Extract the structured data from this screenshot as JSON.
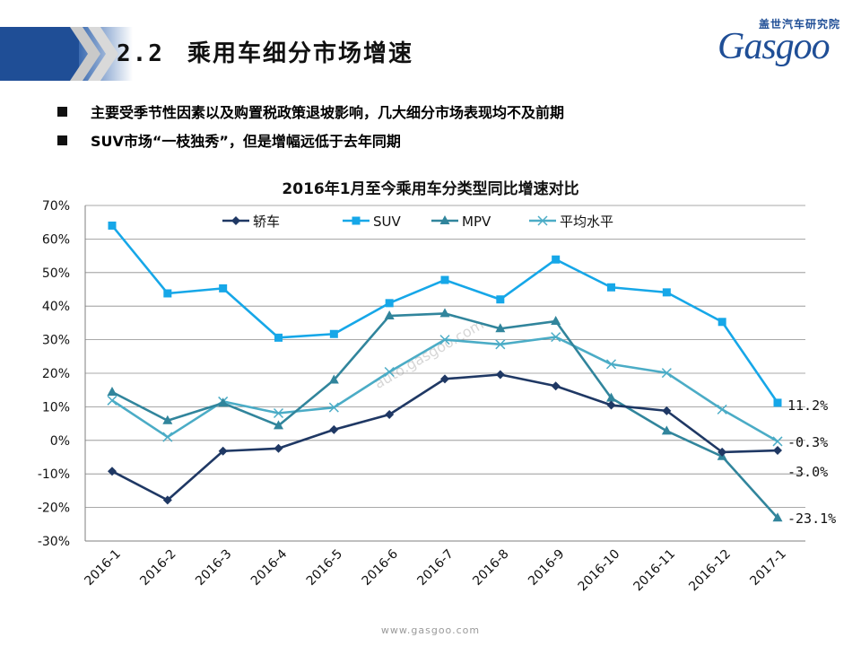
{
  "header": {
    "section_number": "2.2",
    "title": "乘用车细分市场增速",
    "logo_cn": "盖世汽车研究院",
    "logo_word": "Gasgoo"
  },
  "bullets": [
    "主要受季节性因素以及购置税政策退坡影响，几大细分市场表现均不及前期",
    "SUV市场“一枝独秀”，但是增幅远低于去年同期"
  ],
  "colors": {
    "title_band": "#1f4e96",
    "sedan": "#1f3864",
    "suv": "#16a7e8",
    "mpv": "#31859c",
    "average": "#4bacc6"
  },
  "chart_data": {
    "type": "line",
    "title": "2016年1月至今乘用车分类型同比增速对比",
    "categories": [
      "2016-1",
      "2016-2",
      "2016-3",
      "2016-4",
      "2016-5",
      "2016-6",
      "2016-7",
      "2016-8",
      "2016-9",
      "2016-10",
      "2016-11",
      "2016-12",
      "2017-1"
    ],
    "ylim": [
      -30,
      70
    ],
    "yticks": [
      "70%",
      "60%",
      "50%",
      "40%",
      "30%",
      "20%",
      "10%",
      "0%",
      "-10%",
      "-20%",
      "-30%"
    ],
    "grid": true,
    "legend_position": "top",
    "series": [
      {
        "name": "轿车",
        "marker": "diamond",
        "color": "#1f3864",
        "values": [
          -9.2,
          -17.8,
          -3.2,
          -2.4,
          3.2,
          7.7,
          18.3,
          19.6,
          16.2,
          10.5,
          8.8,
          -3.5,
          -3.0
        ]
      },
      {
        "name": "SUV",
        "marker": "square",
        "color": "#16a7e8",
        "values": [
          64.0,
          43.8,
          45.3,
          30.6,
          31.7,
          40.9,
          47.8,
          42.0,
          53.9,
          45.6,
          44.1,
          35.3,
          11.2
        ]
      },
      {
        "name": "MPV",
        "marker": "triangle",
        "color": "#31859c",
        "values": [
          14.4,
          5.9,
          11.1,
          4.4,
          18.0,
          37.1,
          37.8,
          33.3,
          35.5,
          12.6,
          2.8,
          -4.8,
          -23.1
        ]
      },
      {
        "name": "平均水平",
        "marker": "x",
        "color": "#4bacc6",
        "values": [
          11.9,
          1.0,
          11.6,
          8.1,
          9.8,
          20.4,
          30.0,
          28.6,
          30.8,
          22.7,
          20.1,
          9.2,
          -0.3
        ]
      }
    ],
    "end_labels": [
      "11.2%",
      "-3.0%",
      "-23.1%",
      "-0.3%"
    ]
  },
  "watermark": "auto.gasgoo.com",
  "footer": "www.gasgoo.com"
}
